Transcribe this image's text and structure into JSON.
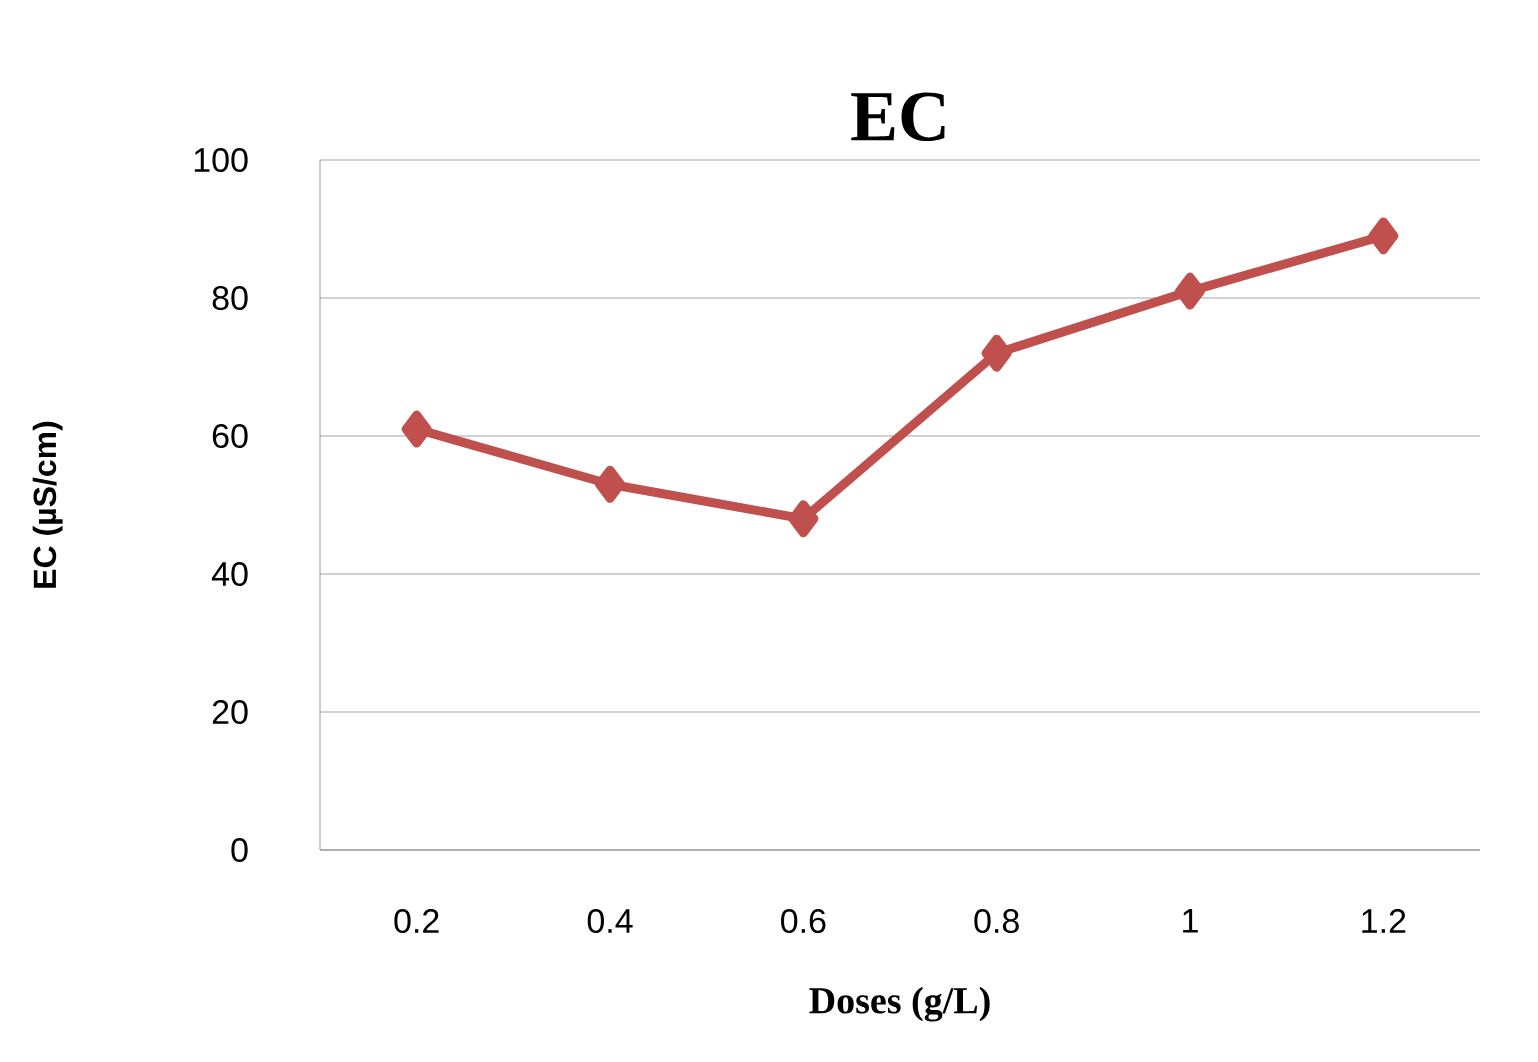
{
  "chart_data": {
    "type": "line",
    "title": "EC",
    "xlabel": "Doses (g/L)",
    "ylabel": "EC (µS/cm)",
    "categories": [
      "0.2",
      "0.4",
      "0.6",
      "0.8",
      "1",
      "1.2"
    ],
    "series": [
      {
        "color": "#c0504d",
        "values": [
          61,
          53,
          48,
          72,
          81,
          89
        ]
      }
    ],
    "ylim": [
      0,
      100
    ],
    "yticks": [
      0,
      20,
      40,
      60,
      80,
      100
    ],
    "grid": "y",
    "marker": "diamond",
    "line_style": "solid"
  }
}
